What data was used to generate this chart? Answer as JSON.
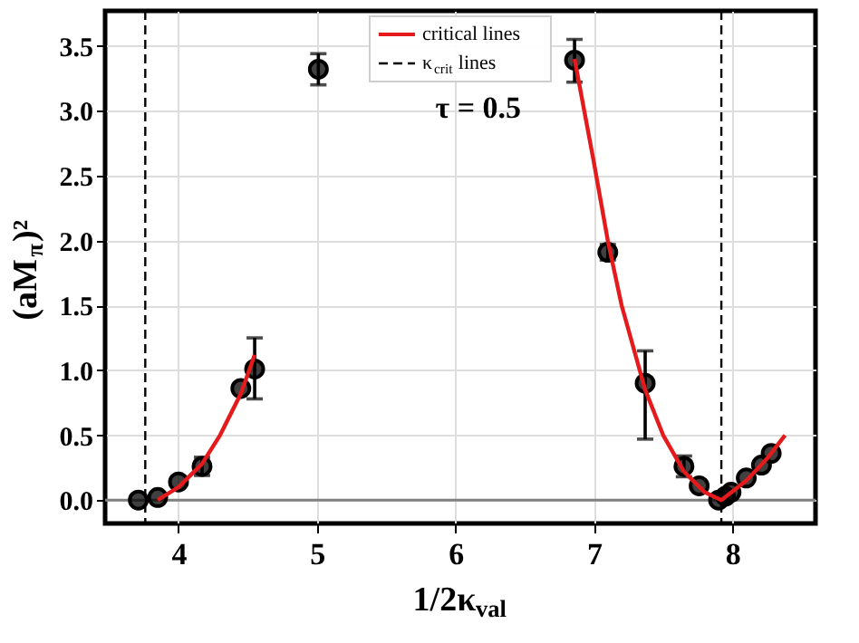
{
  "chart_data": {
    "type": "scatter",
    "xlabel": "1/2κ$_{val}$",
    "ylabel": "(aM$_{π}$)²",
    "xlim": [
      3.47,
      8.6
    ],
    "ylim": [
      -0.18,
      3.77
    ],
    "xticks": [
      4,
      5,
      6,
      7,
      8
    ],
    "yticks": [
      {
        "value": 0,
        "label": "0.0"
      },
      {
        "value": 0.5,
        "label": "0.5"
      },
      {
        "value": 1,
        "label": "1.0"
      },
      {
        "value": 1.5,
        "label": "1.5"
      },
      {
        "value": 2,
        "label": "2.0"
      },
      {
        "value": 2.5,
        "label": "2.5"
      },
      {
        "value": 3,
        "label": "3.0"
      },
      {
        "value": 3.5,
        "label": "3.5"
      }
    ],
    "grid": true,
    "legend": "top",
    "marker": "circle",
    "annotations": [
      "τ = 0.5"
    ],
    "series": [
      {
        "color": "#000000",
        "x": [
          3.71,
          3.85,
          4.0,
          4.17,
          4.45,
          4.55,
          5.01,
          6.86,
          7.1,
          7.37,
          7.65,
          7.76,
          7.9,
          7.95,
          7.99,
          8.1,
          8.21,
          8.28
        ],
        "values": [
          0.0,
          0.02,
          0.14,
          0.26,
          0.86,
          1.01,
          3.32,
          3.39,
          1.91,
          0.9,
          0.26,
          0.11,
          0.0,
          0.03,
          0.06,
          0.17,
          0.27,
          0.36
        ],
        "errors": [
          null,
          null,
          null,
          0.07,
          null,
          [
            0.78,
            1.25
          ],
          0.12,
          [
            3.22,
            3.55
          ],
          0.06,
          [
            0.47,
            1.15
          ],
          0.08,
          null,
          null,
          null,
          null,
          null,
          null,
          null
        ]
      },
      {
        "type": "line",
        "name": "critical lines",
        "color": "#e41a1c",
        "line_style": "solid",
        "marker": "none",
        "x": [
          3.85,
          4.0,
          4.17,
          4.3,
          4.45,
          4.55
        ],
        "values": [
          0.0,
          0.1,
          0.28,
          0.5,
          0.82,
          1.12
        ]
      },
      {
        "type": "line",
        "color": "#e41a1c",
        "line_style": "solid",
        "marker": "none",
        "x": [
          6.86,
          7.0,
          7.1,
          7.2,
          7.37,
          7.5,
          7.65,
          7.8,
          7.92,
          8.1,
          8.25,
          8.38
        ],
        "values": [
          3.4,
          2.6,
          2.0,
          1.5,
          0.85,
          0.5,
          0.22,
          0.06,
          0.0,
          0.15,
          0.32,
          0.5
        ]
      }
    ],
    "ref_lines": [
      {
        "axis": "x",
        "value": 3.76,
        "label": "κ$_{crit}$ lines",
        "color": "#000000",
        "line_style": "dashed"
      },
      {
        "axis": "x",
        "value": 7.92,
        "color": "#000000",
        "line_style": "dashed"
      },
      {
        "axis": "y",
        "value": 0,
        "color": "#808080",
        "line_style": "solid"
      }
    ]
  }
}
